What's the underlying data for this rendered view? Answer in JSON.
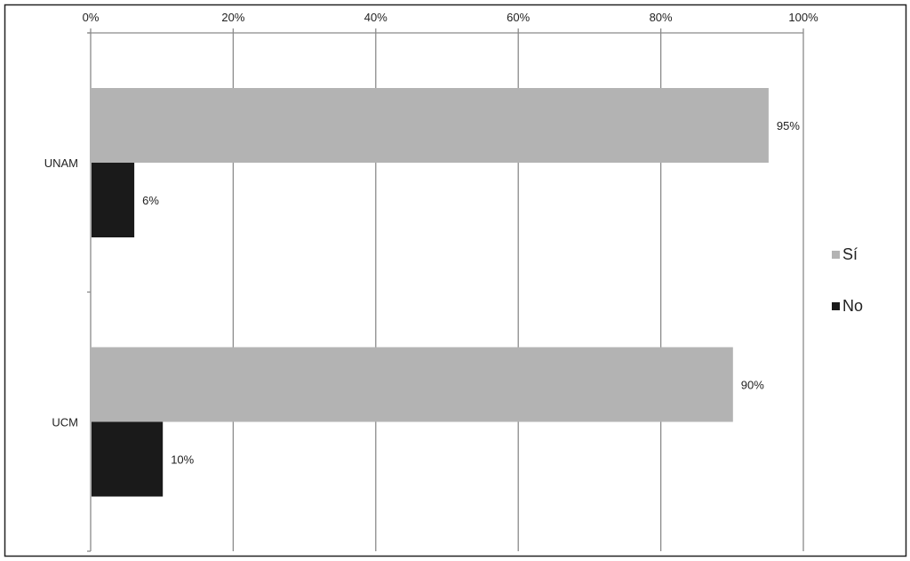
{
  "chart_data": {
    "type": "bar",
    "orientation": "horizontal",
    "categories": [
      "UNAM",
      "UCM"
    ],
    "series": [
      {
        "name": "Sí",
        "values": [
          95,
          90
        ],
        "labels": [
          "95%",
          "90%"
        ],
        "color": "#b3b3b3"
      },
      {
        "name": "No",
        "values": [
          6,
          10
        ],
        "labels": [
          "6%",
          "10%"
        ],
        "color": "#1a1a1a"
      }
    ],
    "xlim": [
      0,
      100
    ],
    "xticks": [
      "0%",
      "20%",
      "40%",
      "60%",
      "80%",
      "100%"
    ],
    "xaxis_position": "top",
    "grid": true,
    "legend_position": "right",
    "title": "",
    "xlabel": "",
    "ylabel": ""
  }
}
